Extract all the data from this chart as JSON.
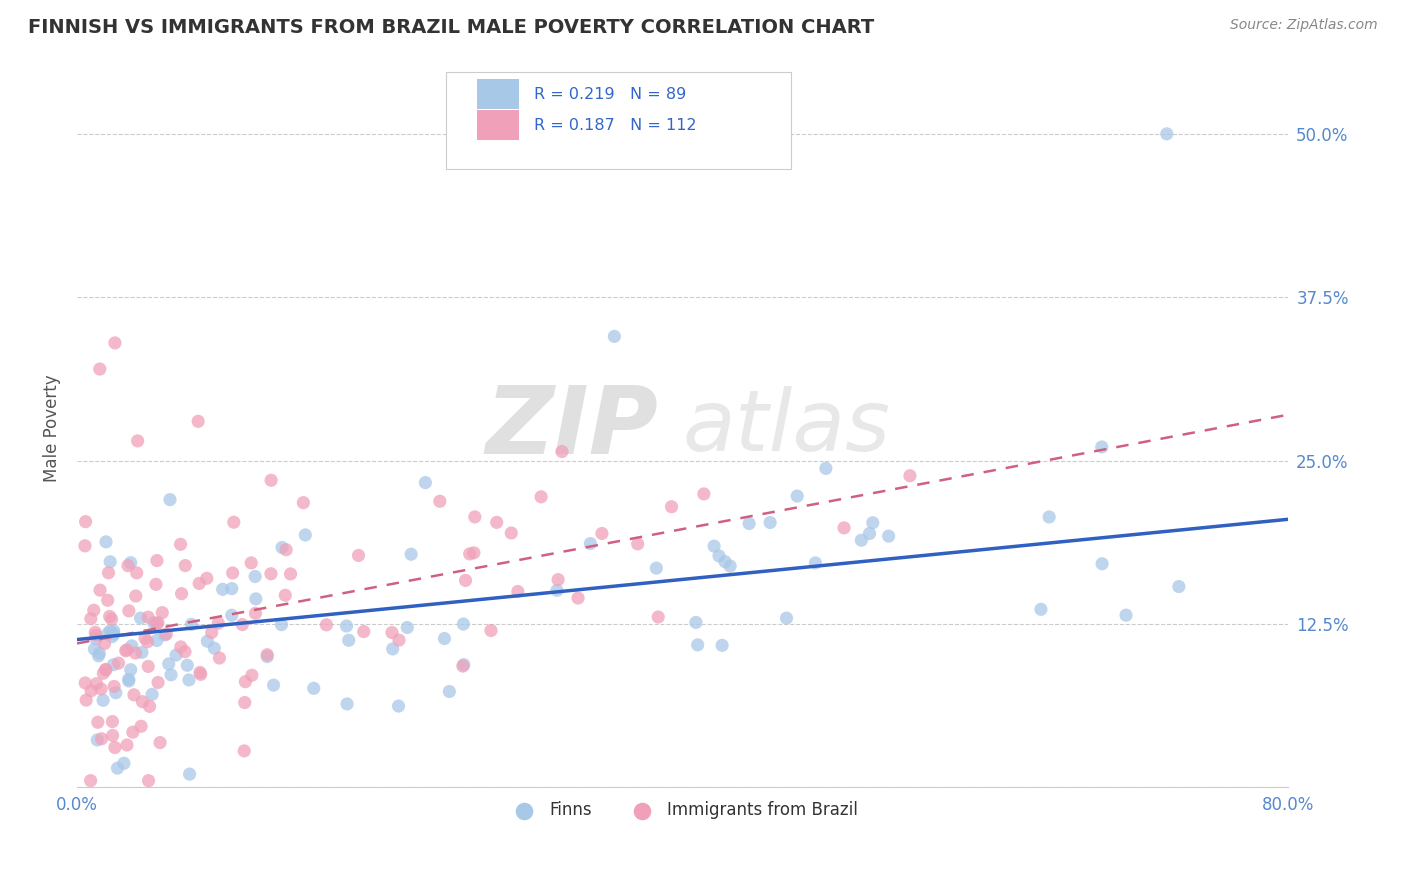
{
  "title": "FINNISH VS IMMIGRANTS FROM BRAZIL MALE POVERTY CORRELATION CHART",
  "source_text": "Source: ZipAtlas.com",
  "ylabel": "Male Poverty",
  "xlim": [
    0.0,
    0.8
  ],
  "ylim": [
    0.0,
    0.55
  ],
  "yticks": [
    0.0,
    0.125,
    0.25,
    0.375,
    0.5
  ],
  "yticklabels_right": [
    "",
    "12.5%",
    "25.0%",
    "37.5%",
    "50.0%"
  ],
  "xticks": [
    0.0,
    0.2,
    0.4,
    0.6,
    0.8
  ],
  "xticklabels": [
    "0.0%",
    "",
    "",
    "",
    "80.0%"
  ],
  "legend1_label": "R = 0.219   N = 89",
  "legend2_label": "R = 0.187   N = 112",
  "legend_bottom_label1": "Finns",
  "legend_bottom_label2": "Immigrants from Brazil",
  "finns_color": "#a8c8e8",
  "brazil_color": "#f0a0b8",
  "finns_line_color": "#3060c0",
  "brazil_line_color": "#d06080",
  "watermark_zip": "ZIP",
  "watermark_atlas": "atlas",
  "title_fontsize": 14,
  "tick_color": "#5588cc",
  "finns_line_x0": 0.0,
  "finns_line_y0": 0.113,
  "finns_line_x1": 0.8,
  "finns_line_y1": 0.205,
  "brazil_line_x0": 0.0,
  "brazil_line_y0": 0.11,
  "brazil_line_x1": 0.8,
  "brazil_line_y1": 0.285
}
